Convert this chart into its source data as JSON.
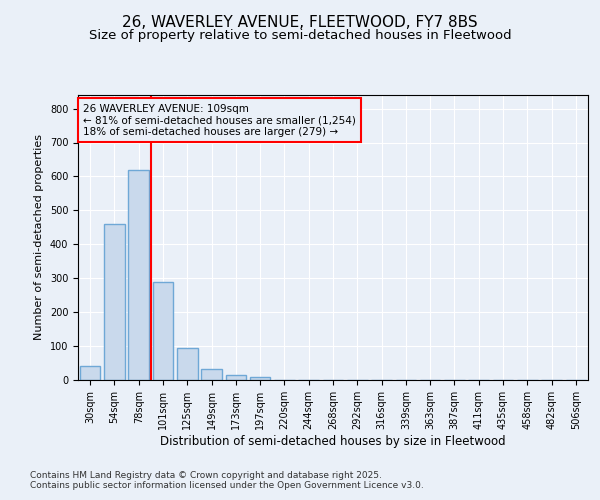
{
  "title1": "26, WAVERLEY AVENUE, FLEETWOOD, FY7 8BS",
  "title2": "Size of property relative to semi-detached houses in Fleetwood",
  "xlabel": "Distribution of semi-detached houses by size in Fleetwood",
  "ylabel": "Number of semi-detached properties",
  "categories": [
    "30sqm",
    "54sqm",
    "78sqm",
    "101sqm",
    "125sqm",
    "149sqm",
    "173sqm",
    "197sqm",
    "220sqm",
    "244sqm",
    "268sqm",
    "292sqm",
    "316sqm",
    "339sqm",
    "363sqm",
    "387sqm",
    "411sqm",
    "435sqm",
    "458sqm",
    "482sqm",
    "506sqm"
  ],
  "values": [
    40,
    460,
    618,
    290,
    93,
    33,
    15,
    10,
    0,
    0,
    0,
    0,
    0,
    0,
    0,
    0,
    0,
    0,
    0,
    0,
    0
  ],
  "bar_color": "#c9d9ec",
  "bar_edge_color": "#6fa8d6",
  "bar_linewidth": 1.0,
  "vline_x_index": 2.5,
  "vline_color": "red",
  "vline_linewidth": 1.5,
  "annotation_title": "26 WAVERLEY AVENUE: 109sqm",
  "annotation_line1": "← 81% of semi-detached houses are smaller (1,254)",
  "annotation_line2": "18% of semi-detached houses are larger (279) →",
  "annotation_box_color": "red",
  "ylim": [
    0,
    840
  ],
  "yticks": [
    0,
    100,
    200,
    300,
    400,
    500,
    600,
    700,
    800
  ],
  "background_color": "#eaf0f8",
  "plot_background": "#eaf0f8",
  "grid_color": "white",
  "footer": "Contains HM Land Registry data © Crown copyright and database right 2025.\nContains public sector information licensed under the Open Government Licence v3.0.",
  "title1_fontsize": 11,
  "title2_fontsize": 9.5,
  "xlabel_fontsize": 8.5,
  "ylabel_fontsize": 8,
  "tick_fontsize": 7,
  "footer_fontsize": 6.5,
  "ann_fontsize": 7.5
}
